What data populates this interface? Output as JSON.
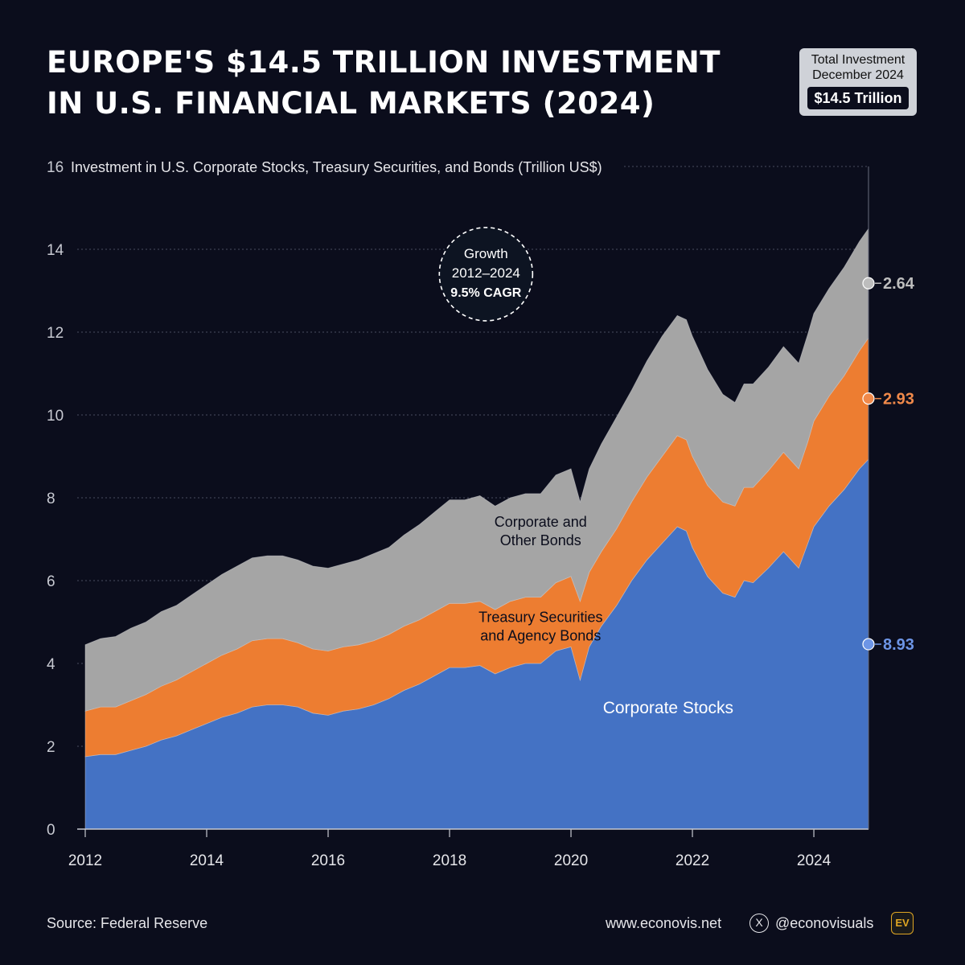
{
  "header": {
    "title_line1": "EUROPE'S $14.5 TRILLION INVESTMENT",
    "title_line2": "IN U.S. FINANCIAL MARKETS (2024)"
  },
  "badge": {
    "line1": "Total Investment",
    "line2": "December 2024",
    "value": "$14.5 Trillion"
  },
  "footer": {
    "source": "Source: Federal Reserve",
    "website": "www.econovis.net",
    "x_icon": "X",
    "handle": "@econovisuals",
    "logo": "EV"
  },
  "colors": {
    "background": "#0b0d1c",
    "stocks": "#4472c4",
    "treasury": "#ed7d31",
    "bonds": "#a5a5a5"
  },
  "chart_data": {
    "type": "area",
    "stacked": true,
    "title": "Investment in U.S. Corporate Stocks, Treasury Securities, and Bonds (Trillion US$)",
    "ylim": [
      0,
      16
    ],
    "xlim": [
      2012,
      2024.9
    ],
    "xticks": [
      2012,
      2014,
      2016,
      2018,
      2020,
      2022,
      2024
    ],
    "yticks": [
      0,
      2,
      4,
      6,
      8,
      10,
      12,
      14,
      16
    ],
    "grid": true,
    "annotation": {
      "lines": [
        "Growth",
        "2012–2024",
        "9.5% CAGR"
      ]
    },
    "x": [
      2012.0,
      2012.25,
      2012.5,
      2012.75,
      2013.0,
      2013.25,
      2013.5,
      2013.75,
      2014.0,
      2014.25,
      2014.5,
      2014.75,
      2015.0,
      2015.25,
      2015.5,
      2015.75,
      2016.0,
      2016.25,
      2016.5,
      2016.75,
      2017.0,
      2017.25,
      2017.5,
      2017.75,
      2018.0,
      2018.25,
      2018.5,
      2018.75,
      2019.0,
      2019.25,
      2019.5,
      2019.75,
      2020.0,
      2020.15,
      2020.3,
      2020.5,
      2020.75,
      2021.0,
      2021.25,
      2021.5,
      2021.75,
      2021.9,
      2022.0,
      2022.25,
      2022.5,
      2022.7,
      2022.85,
      2023.0,
      2023.25,
      2023.5,
      2023.75,
      2023.9,
      2024.0,
      2024.25,
      2024.5,
      2024.75,
      2024.9
    ],
    "series": [
      {
        "name": "Corporate Stocks",
        "label": "Corporate Stocks",
        "end_label": "8.93",
        "values": [
          1.75,
          1.8,
          1.8,
          1.9,
          2.0,
          2.15,
          2.25,
          2.4,
          2.55,
          2.7,
          2.8,
          2.95,
          3.0,
          3.0,
          2.95,
          2.8,
          2.75,
          2.85,
          2.9,
          3.0,
          3.15,
          3.35,
          3.5,
          3.7,
          3.9,
          3.9,
          3.95,
          3.75,
          3.9,
          4.0,
          4.0,
          4.3,
          4.4,
          3.6,
          4.4,
          4.9,
          5.4,
          6.0,
          6.5,
          6.9,
          7.3,
          7.2,
          6.8,
          6.1,
          5.7,
          5.6,
          6.0,
          5.95,
          6.3,
          6.7,
          6.3,
          6.9,
          7.3,
          7.8,
          8.2,
          8.7,
          8.93
        ]
      },
      {
        "name": "Treasury Securities and Agency Bonds",
        "label_lines": [
          "Treasury Securities",
          "and Agency Bonds"
        ],
        "end_label": "2.93",
        "values": [
          1.1,
          1.15,
          1.15,
          1.2,
          1.25,
          1.3,
          1.35,
          1.4,
          1.45,
          1.5,
          1.55,
          1.6,
          1.6,
          1.6,
          1.55,
          1.55,
          1.55,
          1.55,
          1.55,
          1.55,
          1.55,
          1.55,
          1.55,
          1.55,
          1.55,
          1.55,
          1.55,
          1.55,
          1.6,
          1.6,
          1.6,
          1.65,
          1.7,
          1.9,
          1.8,
          1.8,
          1.85,
          1.9,
          2.0,
          2.1,
          2.2,
          2.2,
          2.2,
          2.2,
          2.2,
          2.2,
          2.25,
          2.3,
          2.35,
          2.4,
          2.4,
          2.45,
          2.55,
          2.65,
          2.75,
          2.85,
          2.93
        ]
      },
      {
        "name": "Corporate and Other Bonds",
        "label_lines": [
          "Corporate and",
          "Other Bonds"
        ],
        "end_label": "2.64",
        "values": [
          1.6,
          1.65,
          1.7,
          1.75,
          1.75,
          1.8,
          1.8,
          1.85,
          1.9,
          1.95,
          2.0,
          2.0,
          2.0,
          2.0,
          2.0,
          2.0,
          2.0,
          2.0,
          2.05,
          2.1,
          2.1,
          2.2,
          2.3,
          2.4,
          2.5,
          2.5,
          2.55,
          2.5,
          2.5,
          2.5,
          2.5,
          2.6,
          2.6,
          2.4,
          2.5,
          2.6,
          2.7,
          2.7,
          2.8,
          2.9,
          2.9,
          2.9,
          2.9,
          2.8,
          2.6,
          2.5,
          2.5,
          2.5,
          2.5,
          2.55,
          2.55,
          2.6,
          2.6,
          2.6,
          2.62,
          2.64,
          2.64
        ]
      }
    ]
  }
}
